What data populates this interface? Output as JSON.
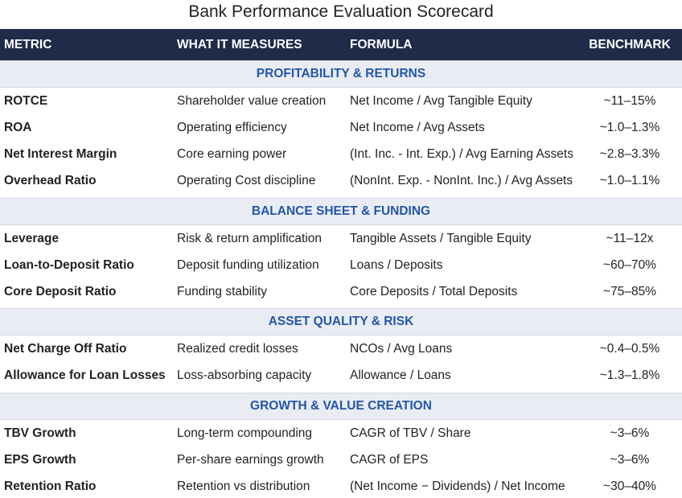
{
  "header": {
    "title": "Bank Performance Evaluation Scorecard"
  },
  "table": {
    "columns": [
      "METRIC",
      "WHAT IT MEASURES",
      "FORMULA",
      "BENCHMARK"
    ],
    "sections": [
      {
        "title": "PROFITABILITY & RETURNS",
        "rows": [
          [
            "ROTCE",
            "Shareholder value creation",
            "Net Income / Avg Tangible Equity",
            "~11–15%"
          ],
          [
            "ROA",
            "Operating efficiency",
            "Net Income / Avg Assets",
            "~1.0–1.3%"
          ],
          [
            "Net Interest Margin",
            "Core earning power",
            "(Int. Inc. - Int. Exp.) / Avg Earning Assets",
            "~2.8–3.3%"
          ],
          [
            "Overhead Ratio",
            "Operating Cost discipline",
            "(NonInt. Exp. - NonInt. Inc.) / Avg Assets",
            "~1.0–1.1%"
          ]
        ]
      },
      {
        "title": "BALANCE SHEET & FUNDING",
        "rows": [
          [
            "Leverage",
            "Risk & return amplification",
            "Tangible Assets / Tangible Equity",
            "~11–12x"
          ],
          [
            "Loan-to-Deposit Ratio",
            "Deposit funding utilization",
            "Loans / Deposits",
            "~60–70%"
          ],
          [
            "Core Deposit Ratio",
            "Funding stability",
            "Core Deposits / Total Deposits",
            "~75–85%"
          ]
        ]
      },
      {
        "title": "ASSET QUALITY & RISK",
        "rows": [
          [
            "Net Charge Off Ratio",
            "Realized credit losses",
            "NCOs / Avg Loans",
            "~0.4–0.5%"
          ],
          [
            "Allowance for Loan Losses",
            "Loss-absorbing capacity",
            "Allowance / Loans",
            "~1.3–1.8%"
          ]
        ]
      },
      {
        "title": "GROWTH & VALUE CREATION",
        "rows": [
          [
            "TBV Growth",
            "Long-term compounding",
            "CAGR of TBV / Share",
            "~3–6%"
          ],
          [
            "EPS Growth",
            "Per-share earnings growth",
            "CAGR of EPS",
            "~3–6%"
          ],
          [
            "Retention Ratio",
            "Retention vs distribution",
            "(Net Income − Dividends) / Net Income",
            "~30–40%"
          ]
        ]
      }
    ]
  }
}
